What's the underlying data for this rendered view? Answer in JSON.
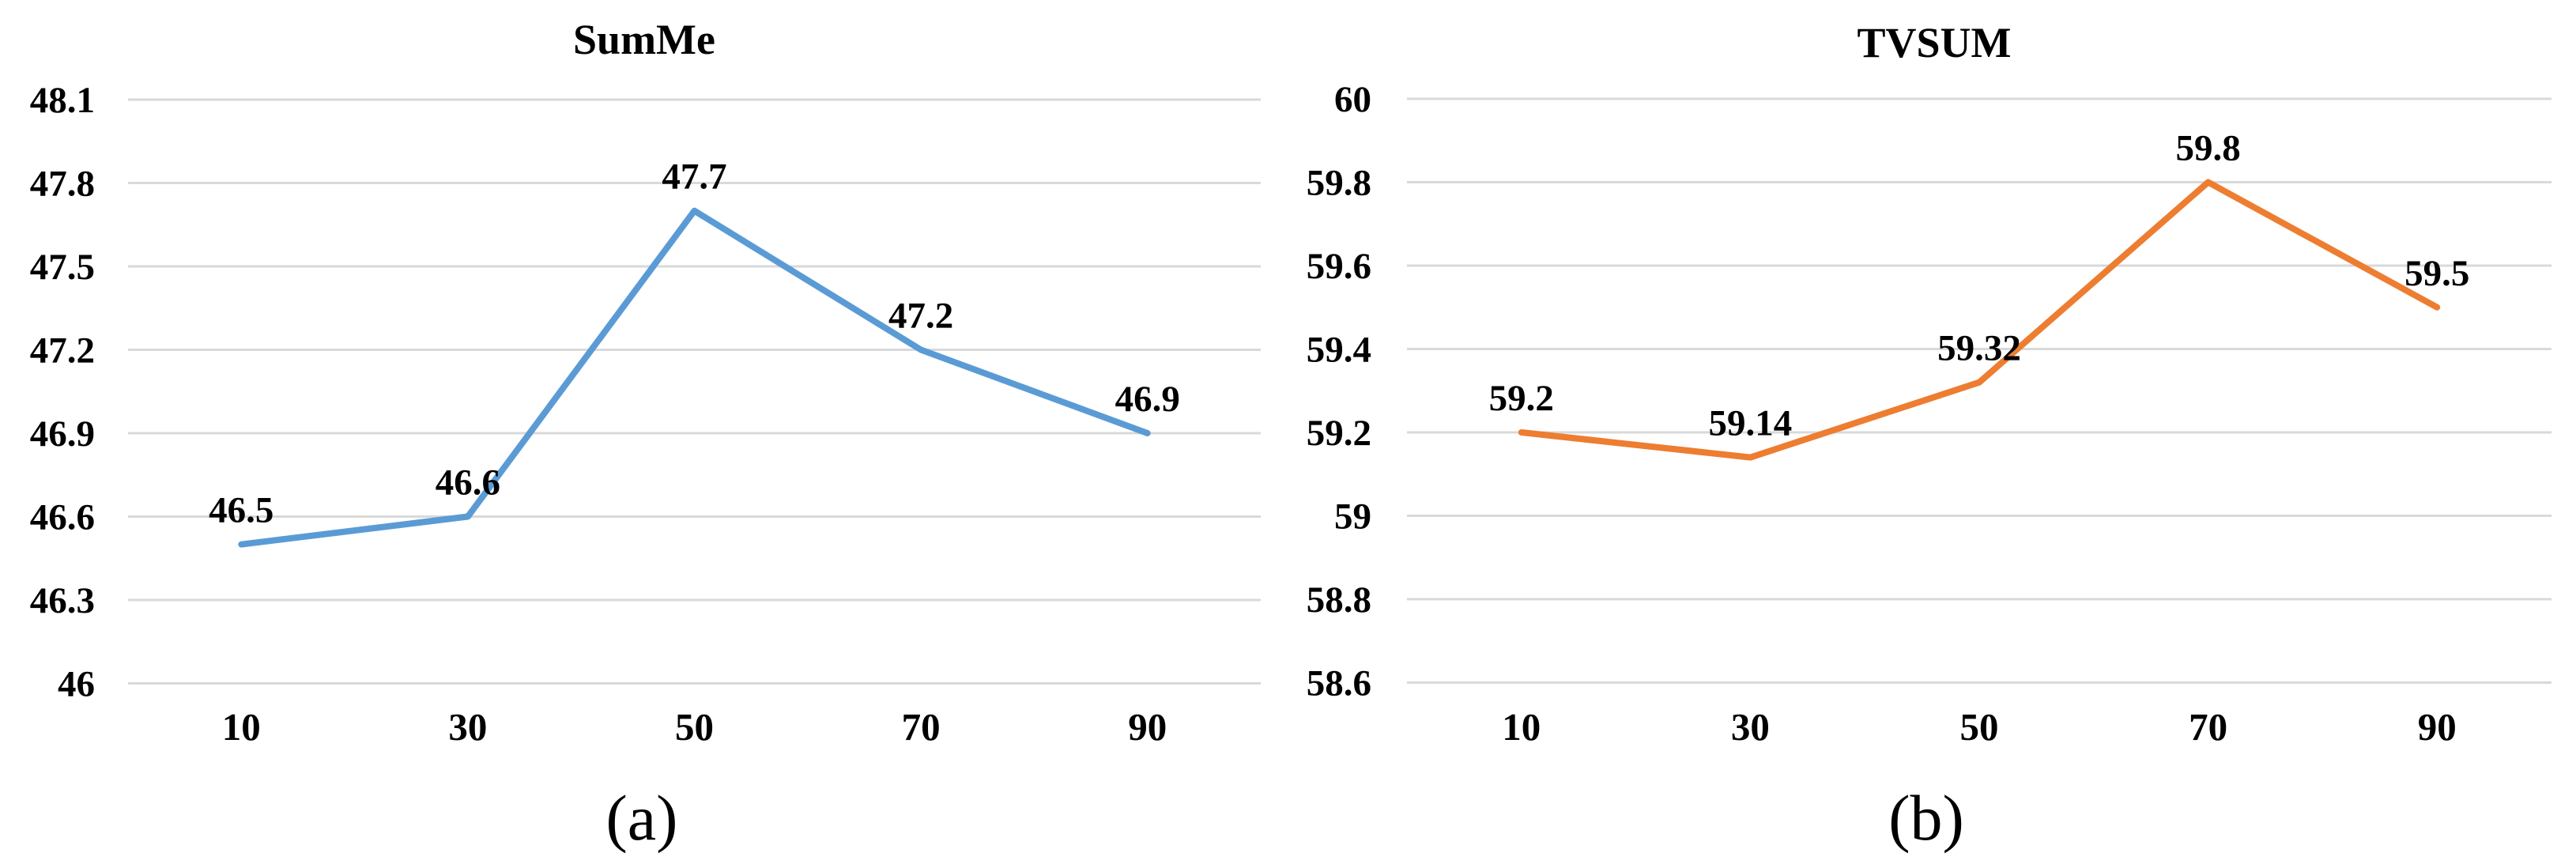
{
  "figure": {
    "panel_a_label": "(a)",
    "panel_b_label": "(b)"
  },
  "colors": {
    "background": "#FFFFFF",
    "gridline": "#D9D9D9",
    "text": "#000000",
    "summe_line": "#5B9BD5",
    "tvsum_line": "#ED7D31"
  },
  "chart_data": [
    {
      "type": "line",
      "title": "SumMe",
      "sublabel": "(a)",
      "categories": [
        "10",
        "30",
        "50",
        "70",
        "90"
      ],
      "x": [
        10,
        30,
        50,
        70,
        90
      ],
      "values": [
        46.5,
        46.6,
        47.7,
        47.2,
        46.9
      ],
      "value_labels": [
        "46.5",
        "46.6",
        "47.7",
        "47.2",
        "46.9"
      ],
      "ylim": [
        46,
        48.1
      ],
      "yticks": [
        48.1,
        47.8,
        47.5,
        47.2,
        46.9,
        46.6,
        46.3,
        46
      ],
      "ytick_labels": [
        "48.1",
        "47.8",
        "47.5",
        "47.2",
        "46.9",
        "46.6",
        "46.3",
        "46"
      ],
      "xlabel": "",
      "ylabel": "",
      "grid": "horizontal",
      "legend": "none",
      "markers": "none",
      "line_color": "#5B9BD5"
    },
    {
      "type": "line",
      "title": "TVSUM",
      "sublabel": "(b)",
      "categories": [
        "10",
        "30",
        "50",
        "70",
        "90"
      ],
      "x": [
        10,
        30,
        50,
        70,
        90
      ],
      "values": [
        59.2,
        59.14,
        59.32,
        59.8,
        59.5
      ],
      "value_labels": [
        "59.2",
        "59.14",
        "59.32",
        "59.8",
        "59.5"
      ],
      "ylim": [
        58.6,
        60
      ],
      "yticks": [
        60,
        59.8,
        59.6,
        59.4,
        59.2,
        59,
        58.8,
        58.6
      ],
      "ytick_labels": [
        "60",
        "59.8",
        "59.6",
        "59.4",
        "59.2",
        "59",
        "58.8",
        "58.6"
      ],
      "xlabel": "",
      "ylabel": "",
      "grid": "horizontal",
      "legend": "none",
      "markers": "none",
      "line_color": "#ED7D31"
    }
  ]
}
